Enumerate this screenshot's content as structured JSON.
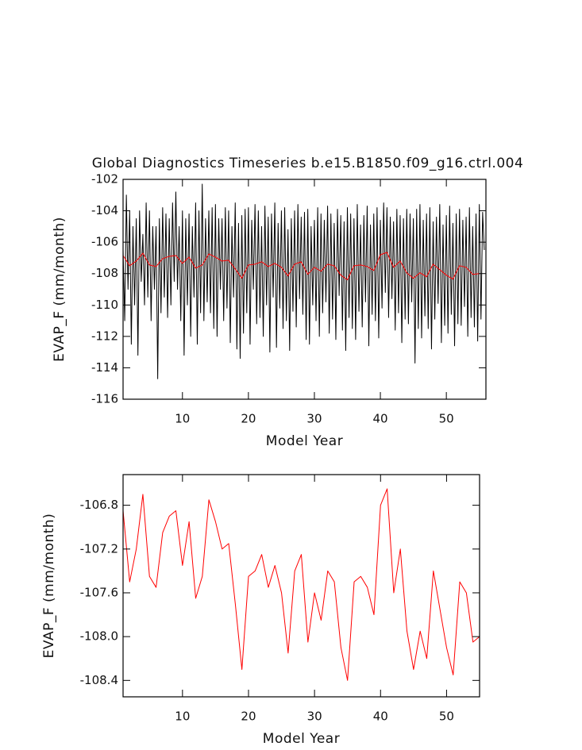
{
  "chart_data": [
    {
      "type": "line",
      "title": "Global Diagnostics Timeseries b.e15.B1850.f09_g16.ctrl.004",
      "x_label": "Model Year",
      "y_label": "EVAP_F (mm/month)",
      "xlim": [
        1,
        56
      ],
      "ylim": [
        -116,
        -102
      ],
      "xticks": [
        10,
        20,
        30,
        40,
        50
      ],
      "yticks": [
        -102,
        -104,
        -106,
        -108,
        -110,
        -112,
        -114,
        -116
      ],
      "series": [
        {
          "color": "#000000",
          "x": [
            1,
            1.25,
            1.5,
            1.75,
            2,
            2.25,
            2.5,
            2.75,
            3,
            3.25,
            3.5,
            3.75,
            4,
            4.25,
            4.5,
            4.75,
            5,
            5.25,
            5.5,
            5.75,
            6,
            6.25,
            6.5,
            6.75,
            7,
            7.25,
            7.5,
            7.75,
            8,
            8.25,
            8.5,
            8.75,
            9,
            9.25,
            9.5,
            9.75,
            10,
            10.25,
            10.5,
            10.75,
            11,
            11.25,
            11.5,
            11.75,
            12,
            12.25,
            12.5,
            12.75,
            13,
            13.25,
            13.5,
            13.75,
            14,
            14.25,
            14.5,
            14.75,
            15,
            15.25,
            15.5,
            15.75,
            16,
            16.25,
            16.5,
            16.75,
            17,
            17.25,
            17.5,
            17.75,
            18,
            18.25,
            18.5,
            18.75,
            19,
            19.25,
            19.5,
            19.75,
            20,
            20.25,
            20.5,
            20.75,
            21,
            21.25,
            21.5,
            21.75,
            22,
            22.25,
            22.5,
            22.75,
            23,
            23.25,
            23.5,
            23.75,
            24,
            24.25,
            24.5,
            24.75,
            25,
            25.25,
            25.5,
            25.75,
            26,
            26.25,
            26.5,
            26.75,
            27,
            27.25,
            27.5,
            27.75,
            28,
            28.25,
            28.5,
            28.75,
            29,
            29.25,
            29.5,
            29.75,
            30,
            30.25,
            30.5,
            30.75,
            31,
            31.25,
            31.5,
            31.75,
            32,
            32.25,
            32.5,
            32.75,
            33,
            33.25,
            33.5,
            33.75,
            34,
            34.25,
            34.5,
            34.75,
            35,
            35.25,
            35.5,
            35.75,
            36,
            36.25,
            36.5,
            36.75,
            37,
            37.25,
            37.5,
            37.75,
            38,
            38.25,
            38.5,
            38.75,
            39,
            39.25,
            39.5,
            39.75,
            40,
            40.25,
            40.5,
            40.75,
            41,
            41.25,
            41.5,
            41.75,
            42,
            42.25,
            42.5,
            42.75,
            43,
            43.25,
            43.5,
            43.75,
            44,
            44.25,
            44.5,
            44.75,
            45,
            45.25,
            45.5,
            45.75,
            46,
            46.25,
            46.5,
            46.75,
            47,
            47.25,
            47.5,
            47.75,
            48,
            48.25,
            48.5,
            48.75,
            49,
            49.25,
            49.5,
            49.75,
            50,
            50.25,
            50.5,
            50.75,
            51,
            51.25,
            51.5,
            51.75,
            52,
            52.25,
            52.5,
            52.75,
            53,
            53.25,
            53.5,
            53.75,
            54,
            54.25,
            54.5,
            54.75,
            55,
            55.25,
            55.5,
            55.75
          ],
          "values": [
            -106.5,
            -111,
            -103,
            -109,
            -104,
            -112.5,
            -105,
            -110,
            -104.5,
            -113.2,
            -104,
            -108.5,
            -105.5,
            -110,
            -103.5,
            -109.5,
            -104,
            -111,
            -105,
            -109,
            -105,
            -114.7,
            -104.5,
            -110.5,
            -103.8,
            -109.5,
            -104.2,
            -110.8,
            -104.5,
            -110,
            -103.5,
            -108.5,
            -102.8,
            -109,
            -105,
            -111,
            -104,
            -113.2,
            -104.5,
            -110,
            -104.2,
            -112,
            -105,
            -109.5,
            -103.5,
            -112.5,
            -104,
            -110.5,
            -102.3,
            -111,
            -104.5,
            -109.8,
            -104,
            -110.5,
            -103.8,
            -111.5,
            -103.6,
            -112,
            -104.5,
            -109,
            -104.5,
            -111,
            -103.8,
            -110.2,
            -104,
            -112.4,
            -105,
            -109.5,
            -103.5,
            -112.8,
            -104.8,
            -113.4,
            -104.3,
            -111.8,
            -103.9,
            -110.5,
            -103.8,
            -112.5,
            -104.6,
            -109,
            -103.6,
            -111.2,
            -104,
            -110.8,
            -105,
            -112,
            -103.7,
            -110,
            -104.4,
            -113,
            -104.2,
            -109.5,
            -103.5,
            -112.7,
            -104.8,
            -110.2,
            -104,
            -111.5,
            -103.8,
            -111,
            -105.2,
            -112.9,
            -104.5,
            -110.4,
            -104,
            -111.4,
            -103.6,
            -109.6,
            -104.4,
            -110.6,
            -104.1,
            -112.2,
            -103.9,
            -112.5,
            -105,
            -110,
            -104.6,
            -111,
            -103.8,
            -112,
            -104.2,
            -110.5,
            -104.6,
            -109.8,
            -103.7,
            -111.8,
            -104.2,
            -110.9,
            -104.8,
            -112.2,
            -103.9,
            -109.4,
            -104.3,
            -111.6,
            -104.7,
            -112.9,
            -103.8,
            -110.8,
            -104.2,
            -111.5,
            -104.5,
            -112.2,
            -103.6,
            -110.4,
            -104.9,
            -111.4,
            -104.3,
            -109.8,
            -103.7,
            -112.6,
            -104.9,
            -110.6,
            -104.2,
            -111,
            -103.8,
            -112.1,
            -104.6,
            -110.2,
            -103.5,
            -109.2,
            -103.8,
            -110.8,
            -104.4,
            -109.6,
            -104.7,
            -111.6,
            -103.9,
            -110.5,
            -104.3,
            -112.4,
            -104.5,
            -110.9,
            -103.9,
            -111.2,
            -104.2,
            -109.8,
            -104.5,
            -113.7,
            -103.9,
            -111.5,
            -103.6,
            -112.1,
            -104.6,
            -110.7,
            -104.2,
            -111.5,
            -103.8,
            -112.8,
            -104.7,
            -110.9,
            -104.4,
            -109.9,
            -103.6,
            -112.4,
            -104.9,
            -111.3,
            -104.3,
            -111.8,
            -103.7,
            -110.6,
            -104.8,
            -112.6,
            -104.2,
            -111.2,
            -103.9,
            -111.3,
            -104.6,
            -110.1,
            -104.4,
            -112,
            -103.8,
            -110.8,
            -105,
            -111.4,
            -104.2,
            -112.3,
            -103.6,
            -110.9,
            -104.1,
            -106.5
          ]
        },
        {
          "color": "#ff0000",
          "x": [
            1,
            2,
            3,
            4,
            5,
            6,
            7,
            8,
            9,
            10,
            11,
            12,
            13,
            14,
            15,
            16,
            17,
            18,
            19,
            20,
            21,
            22,
            23,
            24,
            25,
            26,
            27,
            28,
            29,
            30,
            31,
            32,
            33,
            34,
            35,
            36,
            37,
            38,
            39,
            40,
            41,
            42,
            43,
            44,
            45,
            46,
            47,
            48,
            49,
            50,
            51,
            52,
            53,
            54,
            55
          ],
          "values": [
            -106.85,
            -107.5,
            -107.2,
            -106.7,
            -107.45,
            -107.55,
            -107.05,
            -106.9,
            -106.85,
            -107.35,
            -106.95,
            -107.65,
            -107.45,
            -106.75,
            -106.95,
            -107.2,
            -107.15,
            -107.7,
            -108.3,
            -107.45,
            -107.4,
            -107.25,
            -107.55,
            -107.35,
            -107.6,
            -108.15,
            -107.4,
            -107.25,
            -108.05,
            -107.6,
            -107.85,
            -107.4,
            -107.5,
            -108.1,
            -108.4,
            -107.5,
            -107.45,
            -107.55,
            -107.8,
            -106.8,
            -106.65,
            -107.6,
            -107.2,
            -107.95,
            -108.3,
            -107.95,
            -108.2,
            -107.4,
            -107.75,
            -108.1,
            -108.35,
            -107.5,
            -107.6,
            -108.05,
            -108
          ]
        }
      ]
    },
    {
      "type": "line",
      "x_label": "Model Year",
      "y_label": "EVAP_F (mm/month)",
      "xlim": [
        1,
        55
      ],
      "ylim": [
        -108.55,
        -106.52
      ],
      "xticks": [
        10,
        20,
        30,
        40,
        50
      ],
      "yticks": [
        -106.8,
        -107.2,
        -107.6,
        {
          "value": -108,
          "label": "-108.0"
        },
        -108.4
      ],
      "series": [
        {
          "color": "#ff0000",
          "x": [
            1,
            2,
            3,
            4,
            5,
            6,
            7,
            8,
            9,
            10,
            11,
            12,
            13,
            14,
            15,
            16,
            17,
            18,
            19,
            20,
            21,
            22,
            23,
            24,
            25,
            26,
            27,
            28,
            29,
            30,
            31,
            32,
            33,
            34,
            35,
            36,
            37,
            38,
            39,
            40,
            41,
            42,
            43,
            44,
            45,
            46,
            47,
            48,
            49,
            50,
            51,
            52,
            53,
            54,
            55
          ],
          "values": [
            -106.85,
            -107.5,
            -107.2,
            -106.7,
            -107.45,
            -107.55,
            -107.05,
            -106.9,
            -106.85,
            -107.35,
            -106.95,
            -107.65,
            -107.45,
            -106.75,
            -106.95,
            -107.2,
            -107.15,
            -107.7,
            -108.3,
            -107.45,
            -107.4,
            -107.25,
            -107.55,
            -107.35,
            -107.6,
            -108.15,
            -107.4,
            -107.25,
            -108.05,
            -107.6,
            -107.85,
            -107.4,
            -107.5,
            -108.1,
            -108.4,
            -107.5,
            -107.45,
            -107.55,
            -107.8,
            -106.8,
            -106.65,
            -107.6,
            -107.2,
            -107.95,
            -108.3,
            -107.95,
            -108.2,
            -107.4,
            -107.75,
            -108.1,
            -108.35,
            -107.5,
            -107.6,
            -108.05,
            -108
          ]
        }
      ]
    }
  ]
}
